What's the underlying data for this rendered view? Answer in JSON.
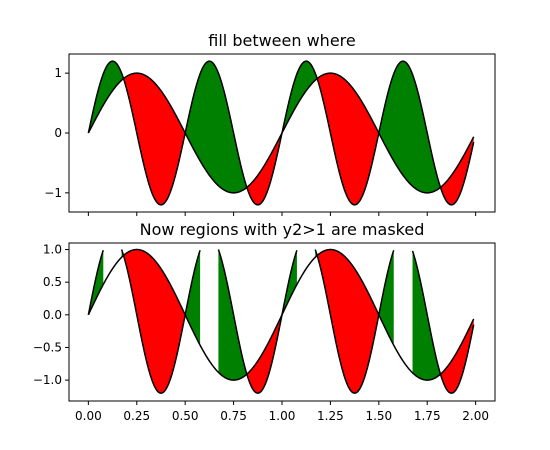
{
  "colors": {
    "curve": "#000000",
    "fill_y2_ge_y1": "#008000",
    "fill_y2_le_y1": "#ff0000",
    "frame": "#000000",
    "background": "#ffffff"
  },
  "chart_data": [
    {
      "type": "area",
      "title": "fill between where",
      "xlabel": "",
      "ylabel": "",
      "xlim": [
        -0.1,
        2.1
      ],
      "ylim": [
        -1.32,
        1.32
      ],
      "xticks": [
        0,
        0.25,
        0.5,
        0.75,
        1.0,
        1.25,
        1.5,
        1.75,
        2.0
      ],
      "xtick_labels": [
        "",
        "",
        "",
        "",
        "",
        "",
        "",
        "",
        ""
      ],
      "yticks": [
        -1,
        0,
        1
      ],
      "ytick_labels": [
        "−1",
        "0",
        "1"
      ],
      "grid": false,
      "x": [
        0,
        0.05,
        0.1,
        0.15,
        0.2,
        0.25,
        0.3,
        0.35,
        0.4,
        0.45,
        0.5,
        0.55,
        0.6,
        0.65,
        0.7,
        0.75,
        0.8,
        0.85,
        0.9,
        0.95,
        1.0,
        1.05,
        1.1,
        1.15,
        1.2,
        1.25,
        1.3,
        1.35,
        1.4,
        1.45,
        1.5,
        1.55,
        1.6,
        1.65,
        1.7,
        1.75,
        1.8,
        1.85,
        1.9,
        1.95,
        1.99
      ],
      "series": [
        {
          "key": "y1",
          "values": [
            0,
            0.31,
            0.59,
            0.81,
            0.95,
            1.0,
            0.95,
            0.81,
            0.59,
            0.31,
            0,
            -0.31,
            -0.59,
            -0.81,
            -0.95,
            -1.0,
            -0.95,
            -0.81,
            -0.59,
            -0.31,
            0,
            0.31,
            0.59,
            0.81,
            0.95,
            1.0,
            0.95,
            0.81,
            0.59,
            0.31,
            0,
            -0.31,
            -0.59,
            -0.81,
            -0.95,
            -1.0,
            -0.95,
            -0.81,
            -0.59,
            -0.31,
            -0.06
          ]
        },
        {
          "key": "y2",
          "values": [
            0,
            0.71,
            1.14,
            1.14,
            0.71,
            0,
            -0.71,
            -1.14,
            -1.14,
            -0.71,
            0,
            0.71,
            1.14,
            1.14,
            0.71,
            0,
            -0.71,
            -1.14,
            -1.14,
            -0.71,
            0,
            0.71,
            1.14,
            1.14,
            0.71,
            0,
            -0.71,
            -1.14,
            -1.14,
            -0.71,
            0,
            0.71,
            1.14,
            1.14,
            0.71,
            0,
            -0.71,
            -1.14,
            -1.14,
            -0.71,
            -0.15
          ]
        }
      ],
      "fills": [
        {
          "where": "y2 >= y1",
          "color": "green"
        },
        {
          "where": "y2 <= y1",
          "color": "red"
        }
      ]
    },
    {
      "type": "area",
      "title": "Now regions with y2>1 are masked",
      "xlabel": "",
      "ylabel": "",
      "xlim": [
        -0.1,
        2.1
      ],
      "ylim": [
        -1.32,
        1.1
      ],
      "xticks": [
        0,
        0.25,
        0.5,
        0.75,
        1.0,
        1.25,
        1.5,
        1.75,
        2.0
      ],
      "xtick_labels": [
        "0.00",
        "0.25",
        "0.50",
        "0.75",
        "1.00",
        "1.25",
        "1.50",
        "1.75",
        "2.00"
      ],
      "yticks": [
        -1.0,
        -0.5,
        0.0,
        0.5,
        1.0
      ],
      "ytick_labels": [
        "−1.0",
        "−0.5",
        "0.0",
        "0.5",
        "1.0"
      ],
      "grid": false,
      "mask": "y2 > 1",
      "x": [
        0,
        0.05,
        0.1,
        0.15,
        0.2,
        0.25,
        0.3,
        0.35,
        0.4,
        0.45,
        0.5,
        0.55,
        0.6,
        0.65,
        0.7,
        0.75,
        0.8,
        0.85,
        0.9,
        0.95,
        1.0,
        1.05,
        1.1,
        1.15,
        1.2,
        1.25,
        1.3,
        1.35,
        1.4,
        1.45,
        1.5,
        1.55,
        1.6,
        1.65,
        1.7,
        1.75,
        1.8,
        1.85,
        1.9,
        1.95,
        1.99
      ],
      "series": [
        {
          "key": "y1",
          "values": [
            0,
            0.31,
            0.59,
            0.81,
            0.95,
            1.0,
            0.95,
            0.81,
            0.59,
            0.31,
            0,
            -0.31,
            -0.59,
            -0.81,
            -0.95,
            -1.0,
            -0.95,
            -0.81,
            -0.59,
            -0.31,
            0,
            0.31,
            0.59,
            0.81,
            0.95,
            1.0,
            0.95,
            0.81,
            0.59,
            0.31,
            0,
            -0.31,
            -0.59,
            -0.81,
            -0.95,
            -1.0,
            -0.95,
            -0.81,
            -0.59,
            -0.31,
            -0.06
          ]
        },
        {
          "key": "y2",
          "values": [
            0,
            0.71,
            1.14,
            1.14,
            0.71,
            0,
            -0.71,
            -1.14,
            -1.14,
            -0.71,
            0,
            0.71,
            1.14,
            1.14,
            0.71,
            0,
            -0.71,
            -1.14,
            -1.14,
            -0.71,
            0,
            0.71,
            1.14,
            1.14,
            0.71,
            0,
            -0.71,
            -1.14,
            -1.14,
            -0.71,
            0,
            0.71,
            1.14,
            1.14,
            0.71,
            0,
            -0.71,
            -1.14,
            -1.14,
            -0.71,
            -0.15
          ]
        }
      ],
      "fills": [
        {
          "where": "y2 >= y1",
          "color": "green"
        },
        {
          "where": "y2 <= y1",
          "color": "red"
        }
      ]
    }
  ]
}
